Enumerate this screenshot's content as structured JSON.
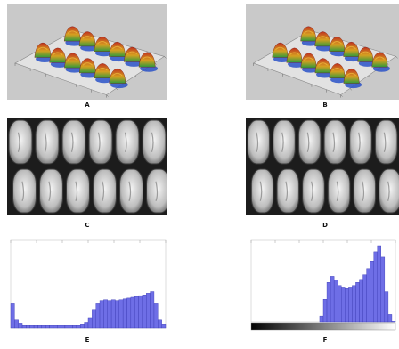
{
  "panels": [
    {
      "id": "a",
      "label": "A",
      "kind": "surface-3d"
    },
    {
      "id": "b",
      "label": "B",
      "kind": "surface-3d"
    },
    {
      "id": "c",
      "label": "C",
      "kind": "grayscale-kernels"
    },
    {
      "id": "d",
      "label": "D",
      "kind": "grayscale-kernels"
    },
    {
      "id": "e",
      "label": "E",
      "kind": "histogram"
    },
    {
      "id": "f",
      "label": "F",
      "kind": "histogram"
    }
  ],
  "colors": {
    "surface_bg": "#c9c9c9",
    "surface_red": "#c0321f",
    "surface_green": "#2f9a3c",
    "surface_blue": "#2a52c8",
    "histogram_fill": "#6e6ee6",
    "histogram_edge": "#3a3ab4",
    "kernel_bg": "#1c1c1c"
  },
  "histogram_e": {
    "bins": 40,
    "values": [
      0.3,
      0.1,
      0.05,
      0.03,
      0.03,
      0.03,
      0.03,
      0.03,
      0.03,
      0.03,
      0.03,
      0.03,
      0.03,
      0.03,
      0.03,
      0.03,
      0.03,
      0.03,
      0.04,
      0.06,
      0.12,
      0.22,
      0.3,
      0.33,
      0.34,
      0.33,
      0.34,
      0.33,
      0.34,
      0.35,
      0.36,
      0.37,
      0.38,
      0.39,
      0.4,
      0.42,
      0.44,
      0.3,
      0.1,
      0.04
    ]
  },
  "histogram_f": {
    "bins": 40,
    "values": [
      0,
      0,
      0,
      0,
      0,
      0,
      0,
      0,
      0,
      0,
      0,
      0,
      0,
      0,
      0,
      0,
      0,
      0,
      0,
      0.08,
      0.3,
      0.52,
      0.6,
      0.55,
      0.48,
      0.46,
      0.44,
      0.46,
      0.48,
      0.52,
      0.56,
      0.62,
      0.7,
      0.8,
      0.92,
      1.0,
      0.85,
      0.4,
      0.1,
      0.02
    ]
  }
}
